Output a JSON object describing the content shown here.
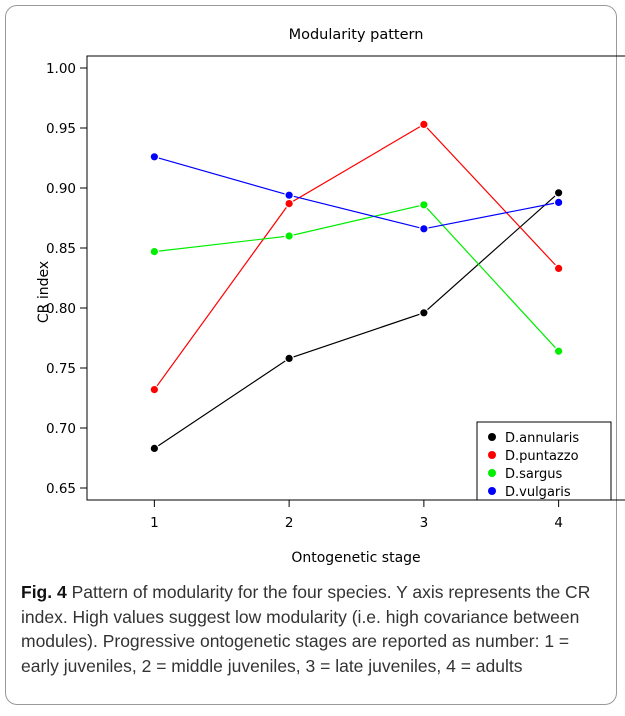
{
  "chart_data": {
    "type": "line",
    "title": "Modularity pattern",
    "xlabel": "Ontogenetic stage",
    "ylabel": "CR index",
    "x": [
      1,
      2,
      3,
      4
    ],
    "x_ticks": [
      "1",
      "2",
      "3",
      "4"
    ],
    "xlim": [
      0.5,
      4.5
    ],
    "ylim": [
      0.64,
      1.01
    ],
    "y_ticks": [
      0.65,
      0.7,
      0.75,
      0.8,
      0.85,
      0.9,
      0.95,
      1.0
    ],
    "y_tick_labels": [
      "0.65",
      "0.70",
      "0.75",
      "0.80",
      "0.85",
      "0.90",
      "0.95",
      "1.00"
    ],
    "grid": false,
    "legend_position": "bottom-right",
    "series": [
      {
        "name": "D.annularis",
        "color": "#000000",
        "values": [
          0.683,
          0.758,
          0.796,
          0.896
        ]
      },
      {
        "name": "D.puntazzo",
        "color": "#ff0000",
        "values": [
          0.732,
          0.887,
          0.953,
          0.833
        ]
      },
      {
        "name": "D.sargus",
        "color": "#00ee00",
        "values": [
          0.847,
          0.86,
          0.886,
          0.764
        ]
      },
      {
        "name": "D.vulgaris",
        "color": "#0000ff",
        "values": [
          0.926,
          0.894,
          0.866,
          0.888
        ]
      }
    ]
  },
  "caption": {
    "label": "Fig. 4",
    "text": " Pattern of modularity for the four species. Y axis represents the CR index. High values suggest low modularity (i.e. high covariance between modules). Progressive ontogenetic stages are reported as number: 1 = early juveniles, 2 = middle juveniles, 3 = late juveniles, 4 = adults"
  }
}
